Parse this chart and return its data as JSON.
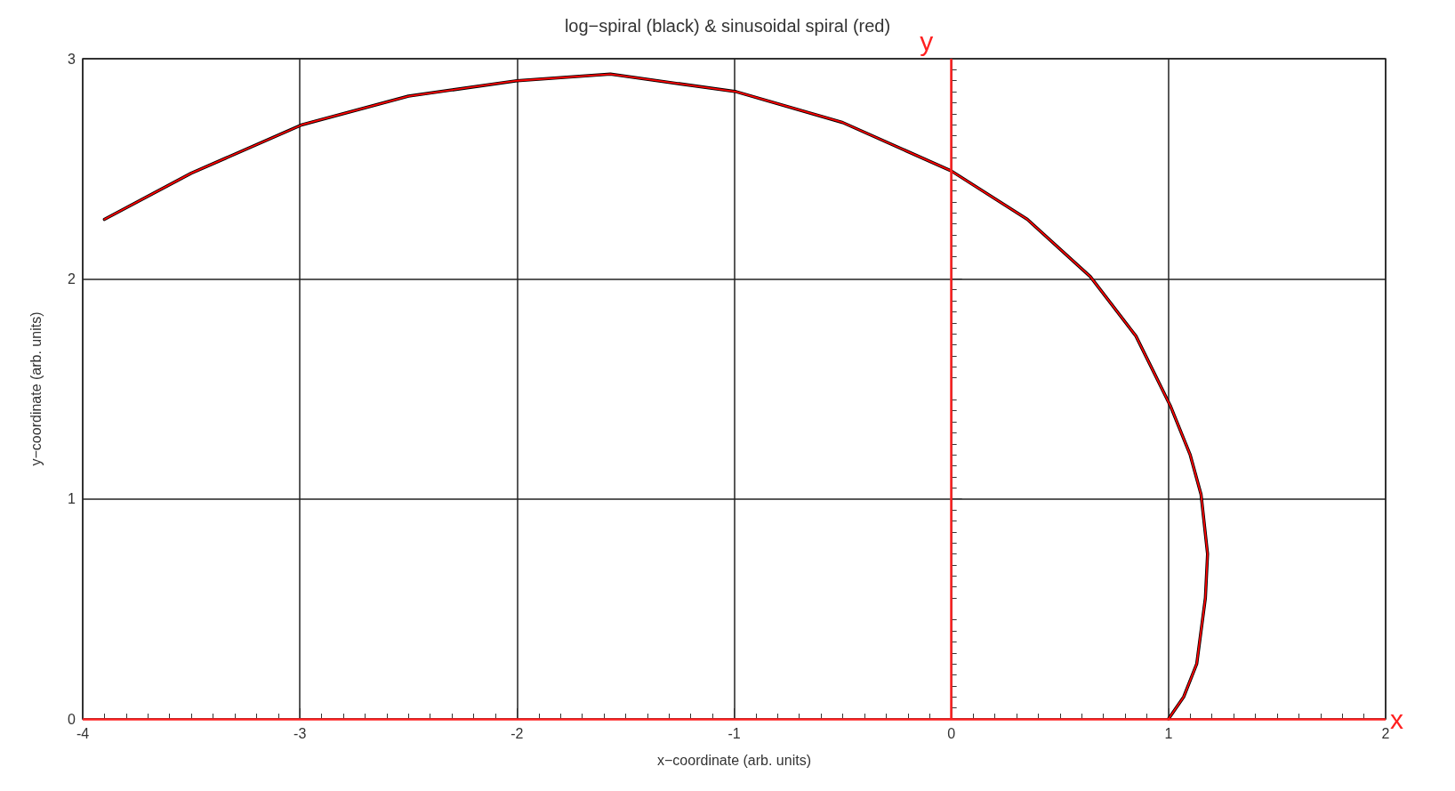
{
  "chart_data": {
    "type": "line",
    "title": "log−spiral (black) & sinusoidal spiral (red)",
    "xlabel": "x−coordinate (arb. units)",
    "ylabel": "y−coordinate (arb. units)",
    "xlim": [
      -4,
      2
    ],
    "xticks": [
      -4,
      -3,
      -2,
      -1,
      0,
      1,
      2
    ],
    "ylim": [
      0,
      3
    ],
    "yticks": [
      0,
      1,
      2,
      3
    ],
    "grid": true,
    "marker": "none",
    "line_style": "solid",
    "series": [
      {
        "color": "#000000",
        "x": [
          -3.9,
          -3.5,
          -2.99,
          -2.5,
          -2.0,
          -1.57,
          -0.99,
          -0.5,
          0,
          0.35,
          0.64,
          0.85,
          1.01,
          1.1,
          1.15,
          1.18,
          1.17,
          1.13,
          1.07,
          1.0
        ],
        "values": [
          2.27,
          2.48,
          2.7,
          2.83,
          2.9,
          2.93,
          2.85,
          2.71,
          2.49,
          2.27,
          2.01,
          1.74,
          1.42,
          1.2,
          1.02,
          0.75,
          0.55,
          0.25,
          0.1,
          0
        ]
      },
      {
        "color": "#ff0000",
        "x": [
          -3.9,
          -3.5,
          -2.99,
          -2.5,
          -2.0,
          -1.57,
          -0.99,
          -0.5,
          0,
          0.35,
          0.64,
          0.85,
          1.01,
          1.1,
          1.15,
          1.18,
          1.17,
          1.13,
          1.07,
          1.0
        ],
        "values": [
          2.27,
          2.48,
          2.7,
          2.83,
          2.9,
          2.93,
          2.85,
          2.71,
          2.49,
          2.27,
          2.01,
          1.74,
          1.42,
          1.2,
          1.02,
          0.75,
          0.55,
          0.25,
          0.1,
          0
        ]
      }
    ],
    "ref_lines": [
      {
        "axis": "x",
        "value": 0,
        "label": "y",
        "color": "#ff2020"
      },
      {
        "axis": "y",
        "value": 0,
        "label": "x",
        "color": "#ff2020"
      }
    ]
  }
}
